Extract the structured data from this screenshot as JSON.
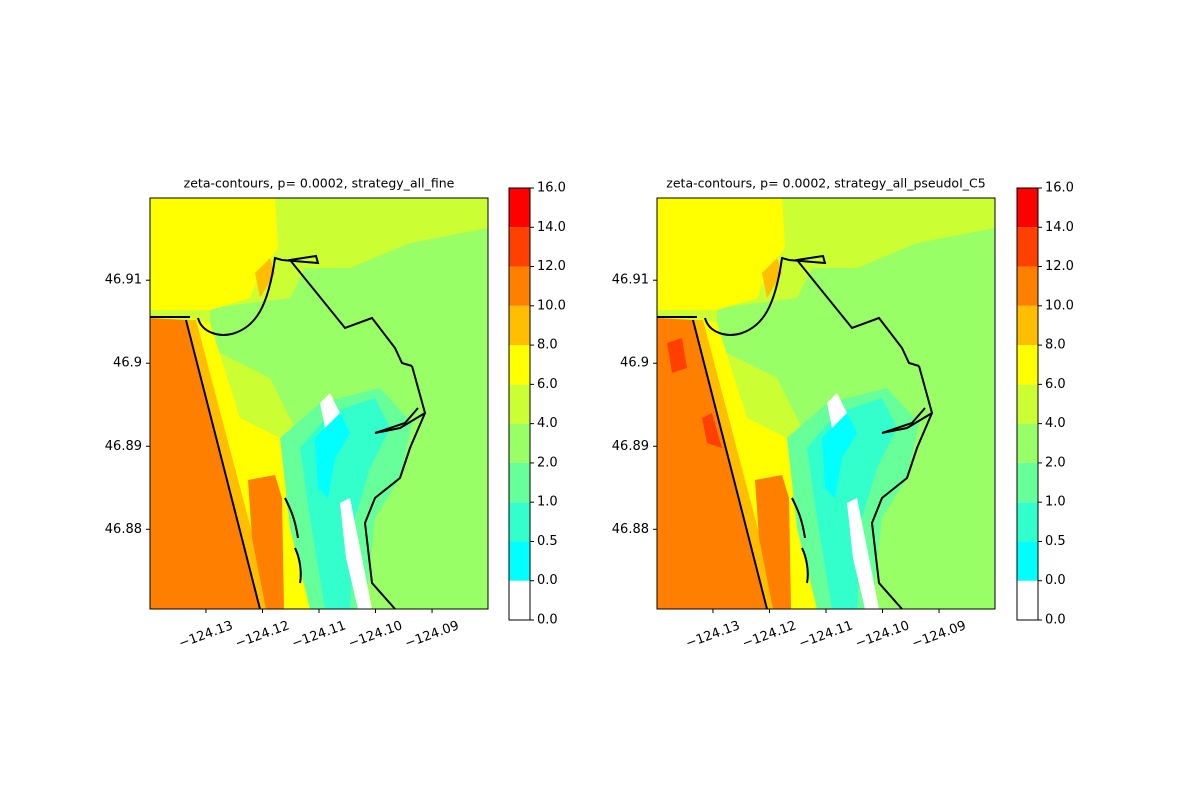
{
  "chart_data": [
    {
      "type": "contour",
      "title": "zeta-contours, p= 0.0002, strategy_all_fine",
      "xlim": [
        -124.1399,
        -124.0801
      ],
      "ylim": [
        46.8704,
        46.9199
      ],
      "xticks": [
        {
          "value": -124.13,
          "label": "−124.13"
        },
        {
          "value": -124.12,
          "label": "−124.12"
        },
        {
          "value": -124.11,
          "label": "−124.11"
        },
        {
          "value": -124.1,
          "label": "−124.10"
        },
        {
          "value": -124.09,
          "label": "−124.09"
        }
      ],
      "yticks": [
        46.88,
        46.89,
        46.9,
        46.91
      ],
      "levels": [
        {
          "value": 0,
          "label": "0.0"
        },
        {
          "value": 0,
          "label": "0.0"
        },
        {
          "value": 0.5,
          "label": "0.5"
        },
        {
          "value": 1,
          "label": "1.0"
        },
        {
          "value": 2,
          "label": "2.0"
        },
        {
          "value": 4,
          "label": "4.0"
        },
        {
          "value": 6,
          "label": "6.0"
        },
        {
          "value": 8,
          "label": "8.0"
        },
        {
          "value": 10,
          "label": "10.0"
        },
        {
          "value": 12,
          "label": "12.0"
        },
        {
          "value": 14,
          "label": "14.0"
        },
        {
          "value": 16,
          "label": "16.0"
        }
      ],
      "colors": [
        "#ffffff",
        "#00ffff",
        "#33ffcc",
        "#66ff99",
        "#99ff66",
        "#ccff33",
        "#ffff00",
        "#ffbf00",
        "#ff8000",
        "#ff4000",
        "#ff0000"
      ]
    },
    {
      "type": "contour",
      "title": "zeta-contours, p= 0.0002, strategy_all_pseudoI_C5",
      "xlim": [
        -124.1399,
        -124.0801
      ],
      "ylim": [
        46.8704,
        46.9199
      ],
      "xticks": [
        {
          "value": -124.13,
          "label": "−124.13"
        },
        {
          "value": -124.12,
          "label": "−124.12"
        },
        {
          "value": -124.11,
          "label": "−124.11"
        },
        {
          "value": -124.1,
          "label": "−124.10"
        },
        {
          "value": -124.09,
          "label": "−124.09"
        }
      ],
      "yticks": [
        46.88,
        46.89,
        46.9,
        46.91
      ],
      "levels": [
        {
          "value": 0,
          "label": "0.0"
        },
        {
          "value": 0,
          "label": "0.0"
        },
        {
          "value": 0.5,
          "label": "0.5"
        },
        {
          "value": 1,
          "label": "1.0"
        },
        {
          "value": 2,
          "label": "2.0"
        },
        {
          "value": 4,
          "label": "4.0"
        },
        {
          "value": 6,
          "label": "6.0"
        },
        {
          "value": 8,
          "label": "8.0"
        },
        {
          "value": 10,
          "label": "10.0"
        },
        {
          "value": 12,
          "label": "12.0"
        },
        {
          "value": 14,
          "label": "14.0"
        },
        {
          "value": 16,
          "label": "16.0"
        }
      ],
      "colors": [
        "#ffffff",
        "#00ffff",
        "#33ffcc",
        "#66ff99",
        "#99ff66",
        "#ccff33",
        "#ffff00",
        "#ffbf00",
        "#ff8000",
        "#ff4000",
        "#ff0000"
      ]
    }
  ]
}
